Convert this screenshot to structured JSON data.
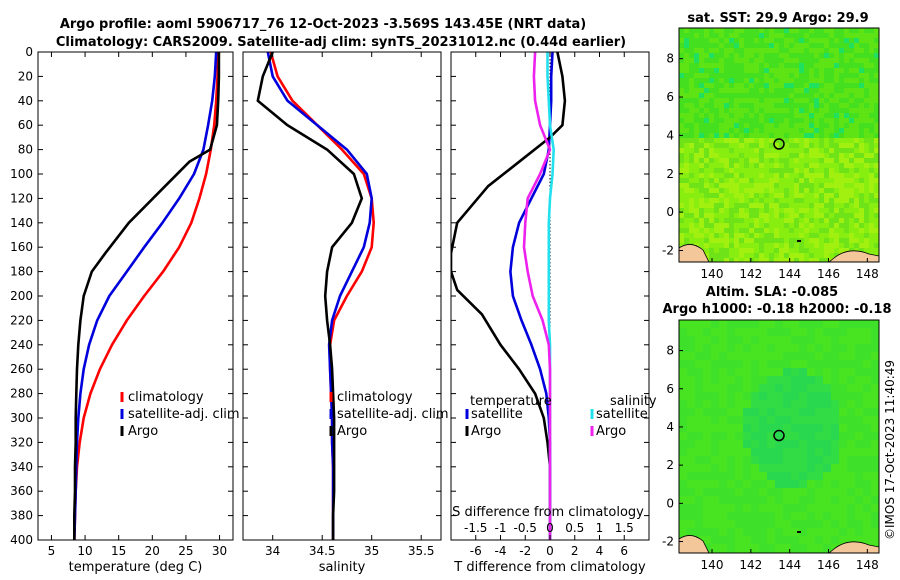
{
  "title": {
    "line1": "Argo profile: aoml 5906717_76 12-Oct-2023 -3.569S 143.45E (NRT data)",
    "line2": "Climatology: CARS2009. Satellite-adj clim: synTS_20231012.nc (0.44d earlier)"
  },
  "timestamp": "©IMOS 17-Oct-2023 11:40:49",
  "colors": {
    "climatology": "#ff0000",
    "satellite": "#0000dd",
    "argo": "#000000",
    "sat_salinity": "#22e0ee",
    "argo_salinity": "#ee22ee"
  },
  "chart_data": [
    {
      "type": "line",
      "name": "temperature-profile",
      "xlabel": "temperature (deg C)",
      "ylabel": "",
      "xlim": [
        3,
        32
      ],
      "ylim": [
        0,
        400
      ],
      "xticks": [
        "5",
        "10",
        "15",
        "20",
        "25",
        "30"
      ],
      "xtick_values": [
        5,
        10,
        15,
        20,
        25,
        30
      ],
      "yticks": [
        "0",
        "20",
        "40",
        "60",
        "80",
        "100",
        "120",
        "140",
        "160",
        "180",
        "200",
        "220",
        "240",
        "260",
        "280",
        "300",
        "320",
        "340",
        "360",
        "380",
        "400"
      ],
      "ytick_values": [
        0,
        20,
        40,
        60,
        80,
        100,
        120,
        140,
        160,
        180,
        200,
        220,
        240,
        260,
        280,
        300,
        320,
        340,
        360,
        380,
        400
      ],
      "legend": [
        "climatology",
        "satellite-adj. clim",
        "Argo"
      ],
      "series": [
        {
          "name": "climatology",
          "color": "#ff0000",
          "x": [
            29.8,
            29.7,
            29.5,
            29.2,
            28.7,
            28.0,
            27.0,
            25.8,
            24.0,
            21.6,
            18.8,
            16.2,
            14.0,
            12.2,
            10.8,
            9.8,
            9.2,
            8.8,
            8.6,
            8.5,
            8.4
          ],
          "depth": [
            0,
            20,
            40,
            60,
            80,
            100,
            120,
            140,
            160,
            180,
            200,
            220,
            240,
            260,
            280,
            300,
            320,
            340,
            360,
            380,
            400
          ]
        },
        {
          "name": "satellite-adj. clim",
          "color": "#0000dd",
          "x": [
            29.5,
            29.3,
            28.9,
            28.3,
            27.6,
            26.2,
            24.0,
            21.5,
            18.8,
            16.2,
            13.6,
            11.8,
            10.6,
            9.8,
            9.3,
            9.0,
            8.8,
            8.7,
            8.6,
            8.5,
            8.4
          ],
          "depth": [
            0,
            20,
            40,
            60,
            80,
            100,
            120,
            140,
            160,
            180,
            200,
            220,
            240,
            260,
            280,
            300,
            320,
            340,
            360,
            380,
            400
          ]
        },
        {
          "name": "Argo",
          "color": "#000000",
          "x": [
            29.9,
            29.9,
            29.8,
            29.6,
            28.6,
            25.5,
            21.0,
            16.5,
            13.0,
            11.0,
            9.8,
            9.3,
            9.0,
            8.8,
            8.7,
            8.6,
            8.6,
            8.5,
            8.5,
            8.4,
            8.4
          ],
          "depth": [
            0,
            20,
            40,
            60,
            80,
            90,
            115,
            140,
            165,
            180,
            200,
            220,
            240,
            260,
            280,
            300,
            320,
            340,
            360,
            380,
            400
          ]
        }
      ]
    },
    {
      "type": "line",
      "name": "salinity-profile",
      "xlabel": "salinity",
      "xlim": [
        33.7,
        35.7
      ],
      "ylim": [
        0,
        400
      ],
      "xticks": [
        "34",
        "34.5",
        "35",
        "35.5"
      ],
      "xtick_values": [
        34,
        34.5,
        35,
        35.5
      ],
      "legend": [
        "climatology",
        "satellite-adj. clim",
        "Argo"
      ],
      "series": [
        {
          "name": "climatology",
          "color": "#ff0000",
          "x": [
            33.98,
            34.05,
            34.2,
            34.45,
            34.7,
            34.92,
            35.0,
            35.02,
            35.0,
            34.9,
            34.75,
            34.62,
            34.58,
            34.58,
            34.59,
            34.6,
            34.6,
            34.61,
            34.61,
            34.61,
            34.61
          ],
          "depth": [
            0,
            20,
            40,
            60,
            80,
            100,
            120,
            140,
            160,
            180,
            200,
            220,
            240,
            260,
            280,
            300,
            320,
            340,
            360,
            380,
            400
          ]
        },
        {
          "name": "satellite-adj. clim",
          "color": "#0000dd",
          "x": [
            33.95,
            34.0,
            34.15,
            34.45,
            34.75,
            34.95,
            35.0,
            34.98,
            34.92,
            34.8,
            34.68,
            34.6,
            34.57,
            34.58,
            34.59,
            34.6,
            34.6,
            34.61,
            34.61,
            34.61,
            34.61
          ],
          "depth": [
            0,
            20,
            40,
            60,
            80,
            100,
            120,
            140,
            160,
            180,
            200,
            220,
            240,
            260,
            280,
            300,
            320,
            340,
            360,
            380,
            400
          ]
        },
        {
          "name": "Argo",
          "color": "#000000",
          "x": [
            34.0,
            33.9,
            33.85,
            34.15,
            34.55,
            34.82,
            34.9,
            34.8,
            34.6,
            34.55,
            34.53,
            34.55,
            34.58,
            34.6,
            34.61,
            34.62,
            34.62,
            34.62,
            34.62,
            34.61,
            34.61
          ],
          "depth": [
            0,
            20,
            40,
            60,
            80,
            100,
            120,
            140,
            160,
            180,
            200,
            220,
            240,
            260,
            280,
            300,
            320,
            340,
            360,
            380,
            400
          ]
        }
      ]
    },
    {
      "type": "line",
      "name": "difference-profile",
      "xlabel": "T difference from climatology",
      "top_xlabel": "S difference from climatology",
      "xlim": [
        -8,
        8
      ],
      "ylim": [
        0,
        400
      ],
      "xticks": [
        "-6",
        "-4",
        "-2",
        "0",
        "2",
        "4",
        "6"
      ],
      "xtick_values": [
        -6,
        -4,
        -2,
        0,
        2,
        4,
        6
      ],
      "sticks": [
        "-1.5",
        "-1",
        "-0.5",
        "0",
        "0.5",
        "1",
        "1.5"
      ],
      "stick_values": [
        -6,
        -4,
        -2,
        0,
        2,
        4,
        6
      ],
      "legend_titles": [
        "temperature",
        "salinity"
      ],
      "legend_temperature": [
        "satellite",
        "Argo"
      ],
      "legend_salinity": [
        "satellite",
        "Argo"
      ],
      "series": [
        {
          "name": "satellite T diff",
          "color": "#0000dd",
          "x": [
            0.2,
            0.1,
            0.1,
            0.0,
            -0.1,
            -0.5,
            -1.5,
            -2.5,
            -3.0,
            -3.2,
            -3.0,
            -2.3,
            -1.5,
            -0.8,
            -0.3,
            -0.1,
            0.0,
            0.0,
            0.0,
            0.0,
            0.0
          ],
          "depth": [
            0,
            20,
            40,
            60,
            80,
            100,
            120,
            140,
            160,
            180,
            200,
            220,
            240,
            260,
            280,
            300,
            320,
            340,
            360,
            380,
            400
          ]
        },
        {
          "name": "Argo T diff",
          "color": "#000000",
          "x": [
            0.6,
            1.0,
            1.2,
            1.0,
            0.0,
            -2.5,
            -5.0,
            -7.5,
            -8.0,
            -8.0,
            -7.5,
            -5.5,
            -4.0,
            -2.5,
            -1.2,
            -0.5,
            -0.2,
            0.0,
            0.0,
            0.0,
            0.0
          ],
          "depth": [
            0,
            20,
            40,
            60,
            70,
            90,
            110,
            140,
            165,
            180,
            195,
            215,
            240,
            260,
            280,
            300,
            320,
            340,
            360,
            380,
            400
          ]
        },
        {
          "name": "satellite S diff",
          "color": "#22e0ee",
          "x": [
            -0.2,
            -0.2,
            -0.1,
            0.0,
            0.3,
            0.2,
            0.0,
            -0.1,
            -0.1,
            -0.1,
            -0.1,
            -0.1,
            0.0,
            0.0,
            0.0,
            0.0,
            0.0,
            0.0,
            0.0,
            0.0,
            0.0
          ],
          "depth": [
            0,
            20,
            40,
            60,
            80,
            100,
            120,
            140,
            160,
            180,
            200,
            220,
            240,
            260,
            280,
            300,
            320,
            340,
            360,
            380,
            400
          ]
        },
        {
          "name": "Argo S diff",
          "color": "#ee22ee",
          "x": [
            -1.2,
            -1.3,
            -1.2,
            -0.8,
            0.0,
            -0.8,
            -1.8,
            -2.0,
            -2.1,
            -1.8,
            -1.4,
            -0.6,
            -0.1,
            0.0,
            0.0,
            0.0,
            0.0,
            0.0,
            0.0,
            0.0,
            0.0
          ],
          "depth": [
            0,
            20,
            40,
            60,
            80,
            100,
            120,
            140,
            160,
            180,
            200,
            220,
            240,
            260,
            280,
            300,
            320,
            340,
            360,
            380,
            400
          ]
        }
      ]
    },
    {
      "type": "heatmap",
      "name": "sst-map",
      "title": "sat. SST: 29.9 Argo: 29.9",
      "xticks": [
        "140",
        "142",
        "144",
        "146",
        "148"
      ],
      "xtick_values": [
        140,
        142,
        144,
        146,
        148
      ],
      "yticks": [
        "8",
        "6",
        "4",
        "2",
        "0",
        "-2"
      ],
      "ytick_values": [
        8,
        6,
        4,
        2,
        0,
        -2
      ],
      "xlim": [
        138.3,
        148.6
      ],
      "ylim": [
        -2.6,
        9.6
      ],
      "marker": [
        143.45,
        3.55
      ]
    },
    {
      "type": "heatmap",
      "name": "sla-map",
      "title_line1": "Altim. SLA: -0.085",
      "title_line2": "Argo h1000: -0.18 h2000: -0.18",
      "xticks": [
        "140",
        "142",
        "144",
        "146",
        "148"
      ],
      "xtick_values": [
        140,
        142,
        144,
        146,
        148
      ],
      "yticks": [
        "8",
        "6",
        "4",
        "2",
        "0",
        "-2"
      ],
      "ytick_values": [
        8,
        6,
        4,
        2,
        0,
        -2
      ],
      "xlim": [
        138.3,
        148.6
      ],
      "ylim": [
        -2.6,
        9.6
      ],
      "marker": [
        143.45,
        3.55
      ]
    }
  ]
}
